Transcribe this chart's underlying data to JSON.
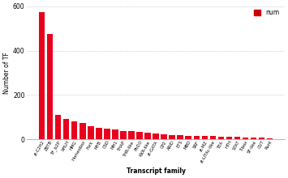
{
  "categories": [
    "zt-C2H2",
    "ZBTB",
    "TF_b2P",
    "bHLH",
    "HMG",
    "Homeobox",
    "Fork",
    "MYB",
    "CSD",
    "MH1",
    "THAP",
    "THR-like",
    "PhDO",
    "RXR-like",
    "zt-GATA",
    "CP2",
    "ARID",
    "ETS",
    "MBD",
    "SRF",
    "zt-MZ",
    "zt-LITAc-like",
    "TEA",
    "HTH",
    "STAT",
    "T-box",
    "SF-like",
    "CUT",
    "Runt"
  ],
  "values": [
    575,
    475,
    110,
    93,
    80,
    73,
    60,
    52,
    47,
    43,
    38,
    36,
    34,
    31,
    27,
    23,
    20,
    18,
    16,
    16,
    15,
    14,
    12,
    11,
    10,
    9,
    8,
    7,
    6
  ],
  "bar_color": "#e8001c",
  "ylabel": "Number of TF",
  "xlabel": "Transcript family",
  "ylim": [
    0,
    600
  ],
  "yticks": [
    0,
    200,
    400,
    600
  ],
  "legend_label": "num",
  "legend_color": "#cc0000",
  "grid_color": "#bbbbbb",
  "background": "#ffffff"
}
